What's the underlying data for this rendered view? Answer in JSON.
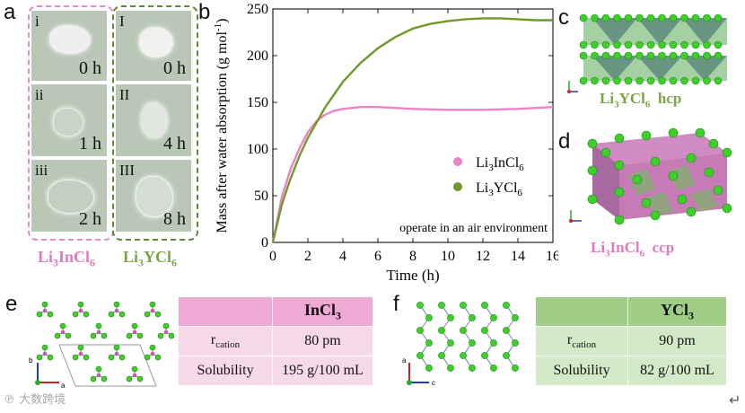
{
  "panels": {
    "a": "a",
    "b": "b",
    "c": "c",
    "d": "d",
    "e": "e",
    "f": "f"
  },
  "panel_a": {
    "pink_photos": [
      {
        "roman": "i",
        "time": "0 h"
      },
      {
        "roman": "ii",
        "time": "1 h"
      },
      {
        "roman": "iii",
        "time": "2 h"
      }
    ],
    "green_photos": [
      {
        "roman": "I",
        "time": "0 h"
      },
      {
        "roman": "II",
        "time": "4 h"
      },
      {
        "roman": "III",
        "time": "8 h"
      }
    ],
    "pink_label": {
      "prefix": "Li",
      "sub1": "3",
      "mid": "InCl",
      "sub2": "6"
    },
    "green_label": {
      "prefix": "Li",
      "sub1": "3",
      "mid": "YCl",
      "sub2": "6"
    }
  },
  "panel_c": {
    "label": {
      "prefix": "Li",
      "sub1": "3",
      "mid": "YCl",
      "sub2": "6",
      "packing": "hcp"
    }
  },
  "panel_d": {
    "label": {
      "prefix": "Li",
      "sub1": "3",
      "mid": "InCl",
      "sub2": "6",
      "packing": "ccp"
    }
  },
  "chart_data": {
    "type": "line",
    "xlabel": "Time (h)",
    "ylabel": "Mass after water absorption (g mol",
    "ylabel_sup": "-1",
    "ylabel_close": ")",
    "xlim": [
      0,
      16
    ],
    "ylim": [
      0,
      250
    ],
    "xticks": [
      0,
      2,
      4,
      6,
      8,
      10,
      12,
      14,
      16
    ],
    "yticks": [
      0,
      50,
      100,
      150,
      200,
      250
    ],
    "annotation": "operate in an air environment",
    "series": [
      {
        "name": "Li3InCl6",
        "legend_base": "Li",
        "legend_sub1": "3",
        "legend_mid": "InCl",
        "legend_sub2": "6",
        "color": "#ee82c6",
        "x": [
          0,
          0.5,
          1,
          1.5,
          2,
          2.5,
          3,
          3.5,
          4,
          5,
          6,
          8,
          10,
          12,
          14,
          16
        ],
        "y": [
          0,
          48,
          78,
          100,
          118,
          130,
          137,
          141,
          143,
          145,
          145,
          143,
          142,
          142,
          143,
          145
        ]
      },
      {
        "name": "Li3YCl6",
        "legend_base": "Li",
        "legend_sub1": "3",
        "legend_mid": "YCl",
        "legend_sub2": "6",
        "color": "#6f9a2a",
        "x": [
          0,
          0.5,
          1,
          1.5,
          2,
          3,
          4,
          5,
          6,
          7,
          8,
          9,
          10,
          11,
          12,
          13,
          14,
          15,
          16
        ],
        "y": [
          0,
          40,
          68,
          92,
          112,
          145,
          172,
          192,
          208,
          220,
          229,
          234,
          237,
          239,
          240,
          240,
          239,
          238,
          238
        ]
      }
    ]
  },
  "table_e": {
    "header": "InCl",
    "header_sub": "3",
    "rows": [
      {
        "label": "r",
        "label_sub": "cation",
        "value": "80 pm"
      },
      {
        "label": "Solubility",
        "label_sub": "",
        "value": "195 g/100 mL"
      }
    ]
  },
  "table_f": {
    "header": "YCl",
    "header_sub": "3",
    "rows": [
      {
        "label": "r",
        "label_sub": "cation",
        "value": "90 pm"
      },
      {
        "label": "Solubility",
        "label_sub": "",
        "value": "82 g/100 mL"
      }
    ]
  },
  "axes_labels": {
    "a": "a",
    "b": "b",
    "c": "c"
  },
  "watermark": "大数跨境",
  "return_mark": "↵",
  "colors": {
    "pink": "#e27bbd",
    "green": "#7ea348",
    "atom_green": "#3fcf2a",
    "octa_pink": "#c678b6"
  }
}
